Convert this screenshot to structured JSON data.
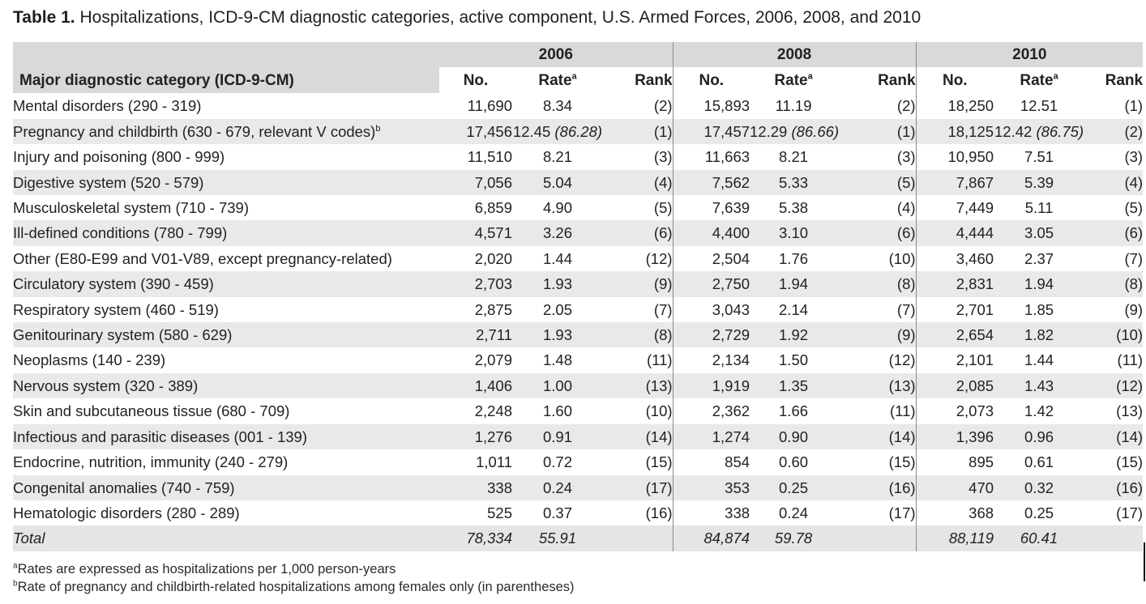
{
  "caption": {
    "label": "Table 1.",
    "text": "Hospitalizations, ICD-9-CM diagnostic categories, active component, U.S. Armed Forces, 2006, 2008, and 2010"
  },
  "header": {
    "years": [
      "2006",
      "2008",
      "2010"
    ],
    "category_label": "Major diagnostic category (ICD-9-CM)",
    "no_label": "No.",
    "rate_label": "Rate",
    "rate_mark": "a",
    "rank_label": "Rank"
  },
  "rows": [
    {
      "category": "Mental disorders (290 - 319)",
      "mark": "",
      "y2006": {
        "no": "11,690",
        "rate": "8.34",
        "rate_paren": "",
        "rank": "(2)"
      },
      "y2008": {
        "no": "15,893",
        "rate": "11.19",
        "rate_paren": "",
        "rank": "(2)"
      },
      "y2010": {
        "no": "18,250",
        "rate": "12.51",
        "rate_paren": "",
        "rank": "(1)"
      }
    },
    {
      "category": "Pregnancy and childbirth (630 - 679, relevant V codes)",
      "mark": "b",
      "y2006": {
        "no": "17,456",
        "rate": "12.45",
        "rate_paren": "(86.28)",
        "rank": "(1)"
      },
      "y2008": {
        "no": "17,457",
        "rate": "12.29",
        "rate_paren": "(86.66)",
        "rank": "(1)"
      },
      "y2010": {
        "no": "18,125",
        "rate": "12.42",
        "rate_paren": "(86.75)",
        "rank": "(2)"
      }
    },
    {
      "category": "Injury and poisoning (800 - 999)",
      "mark": "",
      "y2006": {
        "no": "11,510",
        "rate": "8.21",
        "rate_paren": "",
        "rank": "(3)"
      },
      "y2008": {
        "no": "11,663",
        "rate": "8.21",
        "rate_paren": "",
        "rank": "(3)"
      },
      "y2010": {
        "no": "10,950",
        "rate": "7.51",
        "rate_paren": "",
        "rank": "(3)"
      }
    },
    {
      "category": "Digestive system (520 - 579)",
      "mark": "",
      "y2006": {
        "no": "7,056",
        "rate": "5.04",
        "rate_paren": "",
        "rank": "(4)"
      },
      "y2008": {
        "no": "7,562",
        "rate": "5.33",
        "rate_paren": "",
        "rank": "(5)"
      },
      "y2010": {
        "no": "7,867",
        "rate": "5.39",
        "rate_paren": "",
        "rank": "(4)"
      }
    },
    {
      "category": "Musculoskeletal system (710 - 739)",
      "mark": "",
      "y2006": {
        "no": "6,859",
        "rate": "4.90",
        "rate_paren": "",
        "rank": "(5)"
      },
      "y2008": {
        "no": "7,639",
        "rate": "5.38",
        "rate_paren": "",
        "rank": "(4)"
      },
      "y2010": {
        "no": "7,449",
        "rate": "5.11",
        "rate_paren": "",
        "rank": "(5)"
      }
    },
    {
      "category": "Ill-defined conditions (780 - 799)",
      "mark": "",
      "y2006": {
        "no": "4,571",
        "rate": "3.26",
        "rate_paren": "",
        "rank": "(6)"
      },
      "y2008": {
        "no": "4,400",
        "rate": "3.10",
        "rate_paren": "",
        "rank": "(6)"
      },
      "y2010": {
        "no": "4,444",
        "rate": "3.05",
        "rate_paren": "",
        "rank": "(6)"
      }
    },
    {
      "category": "Other (E80-E99 and V01-V89, except pregnancy-related)",
      "mark": "",
      "y2006": {
        "no": "2,020",
        "rate": "1.44",
        "rate_paren": "",
        "rank": "(12)"
      },
      "y2008": {
        "no": "2,504",
        "rate": "1.76",
        "rate_paren": "",
        "rank": "(10)"
      },
      "y2010": {
        "no": "3,460",
        "rate": "2.37",
        "rate_paren": "",
        "rank": "(7)"
      }
    },
    {
      "category": "Circulatory system (390 - 459)",
      "mark": "",
      "y2006": {
        "no": "2,703",
        "rate": "1.93",
        "rate_paren": "",
        "rank": "(9)"
      },
      "y2008": {
        "no": "2,750",
        "rate": "1.94",
        "rate_paren": "",
        "rank": "(8)"
      },
      "y2010": {
        "no": "2,831",
        "rate": "1.94",
        "rate_paren": "",
        "rank": "(8)"
      }
    },
    {
      "category": "Respiratory system (460 - 519)",
      "mark": "",
      "y2006": {
        "no": "2,875",
        "rate": "2.05",
        "rate_paren": "",
        "rank": "(7)"
      },
      "y2008": {
        "no": "3,043",
        "rate": "2.14",
        "rate_paren": "",
        "rank": "(7)"
      },
      "y2010": {
        "no": "2,701",
        "rate": "1.85",
        "rate_paren": "",
        "rank": "(9)"
      }
    },
    {
      "category": "Genitourinary system (580 - 629)",
      "mark": "",
      "y2006": {
        "no": "2,711",
        "rate": "1.93",
        "rate_paren": "",
        "rank": "(8)"
      },
      "y2008": {
        "no": "2,729",
        "rate": "1.92",
        "rate_paren": "",
        "rank": "(9)"
      },
      "y2010": {
        "no": "2,654",
        "rate": "1.82",
        "rate_paren": "",
        "rank": "(10)"
      }
    },
    {
      "category": "Neoplasms (140 - 239)",
      "mark": "",
      "y2006": {
        "no": "2,079",
        "rate": "1.48",
        "rate_paren": "",
        "rank": "(11)"
      },
      "y2008": {
        "no": "2,134",
        "rate": "1.50",
        "rate_paren": "",
        "rank": "(12)"
      },
      "y2010": {
        "no": "2,101",
        "rate": "1.44",
        "rate_paren": "",
        "rank": "(11)"
      }
    },
    {
      "category": "Nervous system (320 - 389)",
      "mark": "",
      "y2006": {
        "no": "1,406",
        "rate": "1.00",
        "rate_paren": "",
        "rank": "(13)"
      },
      "y2008": {
        "no": "1,919",
        "rate": "1.35",
        "rate_paren": "",
        "rank": "(13)"
      },
      "y2010": {
        "no": "2,085",
        "rate": "1.43",
        "rate_paren": "",
        "rank": "(12)"
      }
    },
    {
      "category": "Skin and subcutaneous tissue (680 - 709)",
      "mark": "",
      "y2006": {
        "no": "2,248",
        "rate": "1.60",
        "rate_paren": "",
        "rank": "(10)"
      },
      "y2008": {
        "no": "2,362",
        "rate": "1.66",
        "rate_paren": "",
        "rank": "(11)"
      },
      "y2010": {
        "no": "2,073",
        "rate": "1.42",
        "rate_paren": "",
        "rank": "(13)"
      }
    },
    {
      "category": "Infectious and parasitic diseases (001 - 139)",
      "mark": "",
      "y2006": {
        "no": "1,276",
        "rate": "0.91",
        "rate_paren": "",
        "rank": "(14)"
      },
      "y2008": {
        "no": "1,274",
        "rate": "0.90",
        "rate_paren": "",
        "rank": "(14)"
      },
      "y2010": {
        "no": "1,396",
        "rate": "0.96",
        "rate_paren": "",
        "rank": "(14)"
      }
    },
    {
      "category": "Endocrine, nutrition, immunity (240 - 279)",
      "mark": "",
      "y2006": {
        "no": "1,011",
        "rate": "0.72",
        "rate_paren": "",
        "rank": "(15)"
      },
      "y2008": {
        "no": "854",
        "rate": "0.60",
        "rate_paren": "",
        "rank": "(15)"
      },
      "y2010": {
        "no": "895",
        "rate": "0.61",
        "rate_paren": "",
        "rank": "(15)"
      }
    },
    {
      "category": "Congenital anomalies (740 - 759)",
      "mark": "",
      "y2006": {
        "no": "338",
        "rate": "0.24",
        "rate_paren": "",
        "rank": "(17)"
      },
      "y2008": {
        "no": "353",
        "rate": "0.25",
        "rate_paren": "",
        "rank": "(16)"
      },
      "y2010": {
        "no": "470",
        "rate": "0.32",
        "rate_paren": "",
        "rank": "(16)"
      }
    },
    {
      "category": "Hematologic disorders (280 - 289)",
      "mark": "",
      "y2006": {
        "no": "525",
        "rate": "0.37",
        "rate_paren": "",
        "rank": "(16)"
      },
      "y2008": {
        "no": "338",
        "rate": "0.24",
        "rate_paren": "",
        "rank": "(17)"
      },
      "y2010": {
        "no": "368",
        "rate": "0.25",
        "rate_paren": "",
        "rank": "(17)"
      }
    }
  ],
  "total": {
    "label": "Total",
    "y2006": {
      "no": "78,334",
      "rate": "55.91"
    },
    "y2008": {
      "no": "84,874",
      "rate": "59.78"
    },
    "y2010": {
      "no": "88,119",
      "rate": "60.41"
    }
  },
  "footnotes": [
    {
      "mark": "a",
      "text": "Rates are expressed as hospitalizations per 1,000 person-years"
    },
    {
      "mark": "b",
      "text": "Rate of pregnancy and childbirth-related hospitalizations among females only (in parentheses)"
    }
  ],
  "colors": {
    "header_bg": "#d9d9d9",
    "row_shade": "#e9e9ec",
    "text": "#222222",
    "separator": "#8a8a8a"
  }
}
